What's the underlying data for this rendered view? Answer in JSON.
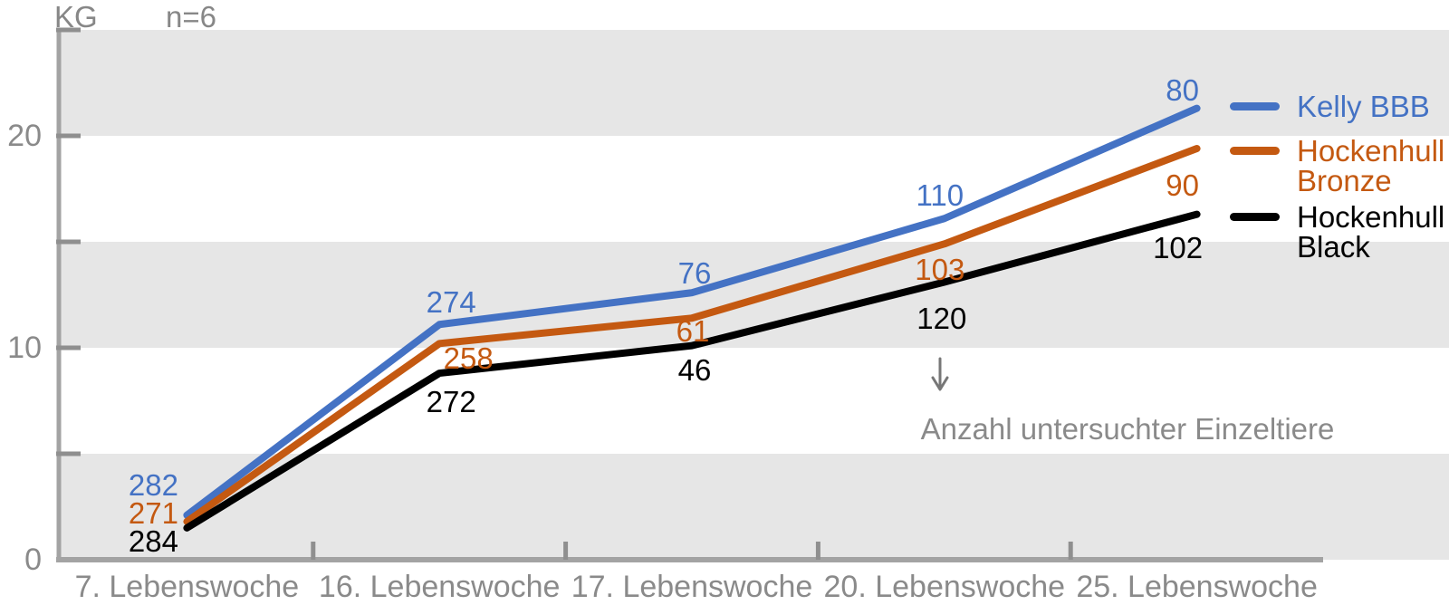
{
  "header": {
    "unit_label": "KG",
    "n_label": "n=6"
  },
  "chart_data": {
    "type": "line",
    "title": "",
    "ylabel": "KG",
    "xlabel": "",
    "n_note": "n=6",
    "categories": [
      "7. Lebenswoche",
      "16. Lebenswoche",
      "17. Lebenswoche",
      "20. Lebenswoche",
      "25. Lebenswoche"
    ],
    "y_ticks_labeled": [
      0,
      10,
      20
    ],
    "y_ticks_minor_step": 5,
    "ylim": [
      0,
      25
    ],
    "grid": "horizontal-bands",
    "bands_gray_kg": [
      [
        0,
        5
      ],
      [
        10,
        15
      ],
      [
        20,
        25
      ]
    ],
    "legend_position": "right",
    "series": [
      {
        "name": "Kelly BBB",
        "color": "#4472C4",
        "values_kg": [
          2.1,
          11.1,
          12.6,
          16.1,
          21.3
        ],
        "point_labels": [
          282,
          274,
          76,
          110,
          80
        ]
      },
      {
        "name": "Hockenhull Bronze",
        "color": "#C45911",
        "values_kg": [
          1.8,
          10.2,
          11.4,
          14.9,
          19.4
        ],
        "point_labels": [
          271,
          258,
          61,
          103,
          90
        ]
      },
      {
        "name": "Hockenhull Black",
        "color": "#000000",
        "values_kg": [
          1.5,
          8.8,
          10.1,
          13.1,
          16.3
        ],
        "point_labels": [
          284,
          272,
          46,
          120,
          102
        ]
      }
    ],
    "annotation": {
      "arrow_glyph": "↓",
      "label": "Anzahl untersuchter Einzeltiere"
    },
    "colors": {
      "band": "#E6E6E6",
      "axis": "#A3A3A3",
      "tick": "#8F8F8F",
      "text_gray": "#8A8A8A",
      "arrow": "#777777"
    }
  }
}
